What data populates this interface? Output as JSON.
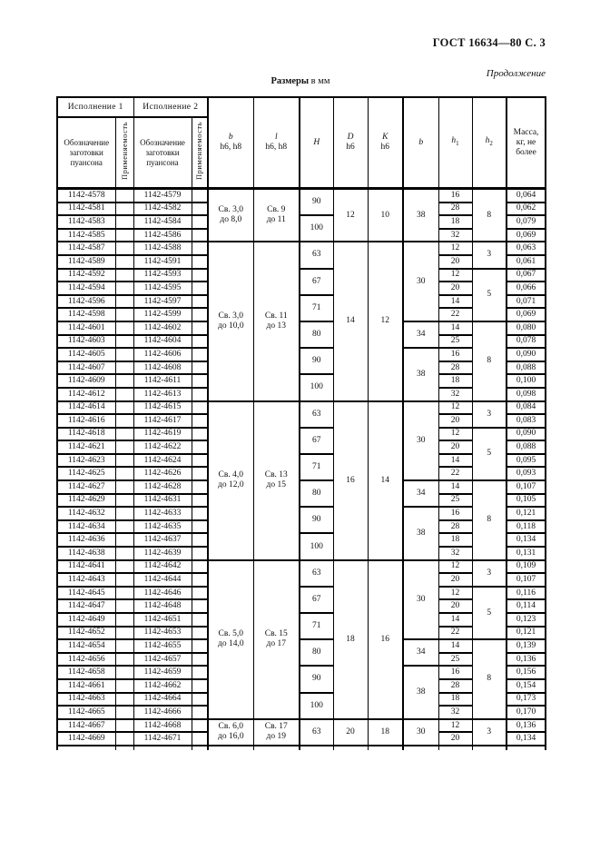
{
  "page": {
    "header_right": "ГОСТ 16634—80 С. 3",
    "continuation": "Продолжение",
    "size_label_bold": "Размеры",
    "size_label_rest": " в мм"
  },
  "table": {
    "group_headers": {
      "variant1": "Исполнение 1",
      "variant2": "Исполнение 2"
    },
    "col_headers": {
      "designation": "Обозначение\nзаготовки\nпуансона",
      "applicability": "Применяемость",
      "b": {
        "sym": "b",
        "tol": "h6, h8"
      },
      "l": {
        "sym": "l",
        "tol": "h6, h8"
      },
      "H": {
        "sym": "H",
        "tol": ""
      },
      "D": {
        "sym": "D",
        "tol": "h6"
      },
      "K": {
        "sym": "K",
        "tol": "h6"
      },
      "b2": {
        "sym": "b",
        "tol": ""
      },
      "h1": {
        "sym": "h",
        "sub": "1"
      },
      "h2": {
        "sym": "h",
        "sub": "2"
      },
      "mass": "Масса,\nкг, не\nболее"
    },
    "blocks": [
      {
        "b": "Св. 3,0\nдо 8,0",
        "l": "Св. 9\nдо 11",
        "D": "12",
        "K": "10",
        "H": [
          [
            "90",
            2
          ],
          [
            "100",
            2
          ]
        ],
        "b2": [
          [
            "38",
            4
          ]
        ],
        "h2": [
          [
            "8",
            4
          ]
        ],
        "rows": [
          [
            "1142-4578",
            "1142-4579",
            "16",
            "0,064"
          ],
          [
            "1142-4581",
            "1142-4582",
            "28",
            "0,062"
          ],
          [
            "1142-4583",
            "1142-4584",
            "18",
            "0,079"
          ],
          [
            "1142-4585",
            "1142-4586",
            "32",
            "0,069"
          ]
        ]
      },
      {
        "b": "Св. 3,0\nдо 10,0",
        "l": "Св. 11\nдо 13",
        "D": "14",
        "K": "12",
        "H": [
          [
            "63",
            2
          ],
          [
            "67",
            2
          ],
          [
            "71",
            2
          ],
          [
            "80",
            2
          ],
          [
            "90",
            2
          ],
          [
            "100",
            2
          ]
        ],
        "b2": [
          [
            "30",
            6
          ],
          [
            "34",
            2
          ],
          [
            "38",
            4
          ]
        ],
        "h2": [
          [
            "3",
            2
          ],
          [
            "5",
            4
          ],
          [
            "8",
            6
          ]
        ],
        "rows": [
          [
            "1142-4587",
            "1142-4588",
            "12",
            "0,063"
          ],
          [
            "1142-4589",
            "1142-4591",
            "20",
            "0,061"
          ],
          [
            "1142-4592",
            "1142-4593",
            "12",
            "0,067"
          ],
          [
            "1142-4594",
            "1142-4595",
            "20",
            "0,066"
          ],
          [
            "1142-4596",
            "1142-4597",
            "14",
            "0,071"
          ],
          [
            "1142-4598",
            "1142-4599",
            "22",
            "0,069"
          ],
          [
            "1142-4601",
            "1142-4602",
            "14",
            "0,080"
          ],
          [
            "1142-4603",
            "1142-4604",
            "25",
            "0,078"
          ],
          [
            "1142-4605",
            "1142-4606",
            "16",
            "0,090"
          ],
          [
            "1142-4607",
            "1142-4608",
            "28",
            "0,088"
          ],
          [
            "1142-4609",
            "1142-4611",
            "18",
            "0,100"
          ],
          [
            "1142-4612",
            "1142-4613",
            "32",
            "0,098"
          ]
        ]
      },
      {
        "b": "Св. 4,0\nдо 12,0",
        "l": "Св. 13\nдо 15",
        "D": "16",
        "K": "14",
        "H": [
          [
            "63",
            2
          ],
          [
            "67",
            2
          ],
          [
            "71",
            2
          ],
          [
            "80",
            2
          ],
          [
            "90",
            2
          ],
          [
            "100",
            2
          ]
        ],
        "b2": [
          [
            "30",
            6
          ],
          [
            "34",
            2
          ],
          [
            "38",
            4
          ]
        ],
        "h2": [
          [
            "3",
            2
          ],
          [
            "5",
            4
          ],
          [
            "8",
            6
          ]
        ],
        "rows": [
          [
            "1142-4614",
            "1142-4615",
            "12",
            "0,084"
          ],
          [
            "1142-4616",
            "1142-4617",
            "20",
            "0,083"
          ],
          [
            "1142-4618",
            "1142-4619",
            "12",
            "0,090"
          ],
          [
            "1142-4621",
            "1142-4622",
            "20",
            "0,088"
          ],
          [
            "1142-4623",
            "1142-4624",
            "14",
            "0,095"
          ],
          [
            "1142-4625",
            "1142-4626",
            "22",
            "0,093"
          ],
          [
            "1142-4627",
            "1142-4628",
            "14",
            "0,107"
          ],
          [
            "1142-4629",
            "1142-4631",
            "25",
            "0,105"
          ],
          [
            "1142-4632",
            "1142-4633",
            "16",
            "0,121"
          ],
          [
            "1142-4634",
            "1142-4635",
            "28",
            "0,118"
          ],
          [
            "1142-4636",
            "1142-4637",
            "18",
            "0,134"
          ],
          [
            "1142-4638",
            "1142-4639",
            "32",
            "0,131"
          ]
        ]
      },
      {
        "b": "Св. 5,0\nдо 14,0",
        "l": "Св. 15\nдо 17",
        "D": "18",
        "K": "16",
        "H": [
          [
            "63",
            2
          ],
          [
            "67",
            2
          ],
          [
            "71",
            2
          ],
          [
            "80",
            2
          ],
          [
            "90",
            2
          ],
          [
            "100",
            2
          ]
        ],
        "b2": [
          [
            "30",
            6
          ],
          [
            "34",
            2
          ],
          [
            "38",
            4
          ]
        ],
        "h2": [
          [
            "3",
            2
          ],
          [
            "5",
            4
          ],
          [
            "8",
            6
          ]
        ],
        "rows": [
          [
            "1142-4641",
            "1142-4642",
            "12",
            "0,109"
          ],
          [
            "1142-4643",
            "1142-4644",
            "20",
            "0,107"
          ],
          [
            "1142-4645",
            "1142-4646",
            "12",
            "0,116"
          ],
          [
            "1142-4647",
            "1142-4648",
            "20",
            "0,114"
          ],
          [
            "1142-4649",
            "1142-4651",
            "14",
            "0,123"
          ],
          [
            "1142-4652",
            "1142-4653",
            "22",
            "0,121"
          ],
          [
            "1142-4654",
            "1142-4655",
            "14",
            "0,139"
          ],
          [
            "1142-4656",
            "1142-4657",
            "25",
            "0,136"
          ],
          [
            "1142-4658",
            "1142-4659",
            "16",
            "0,156"
          ],
          [
            "1142-4661",
            "1142-4662",
            "28",
            "0,154"
          ],
          [
            "1142-4663",
            "1142-4664",
            "18",
            "0,173"
          ],
          [
            "1142-4665",
            "1142-4666",
            "32",
            "0,170"
          ]
        ]
      },
      {
        "b": "Св. 6,0\nдо 16,0",
        "l": "Св. 17\nдо 19",
        "D": "20",
        "K": "18",
        "H": [
          [
            "63",
            2
          ]
        ],
        "b2": [
          [
            "30",
            2
          ]
        ],
        "h2": [
          [
            "3",
            2
          ]
        ],
        "rows": [
          [
            "1142-4667",
            "1142-4668",
            "12",
            "0,136"
          ],
          [
            "1142-4669",
            "1142-4671",
            "20",
            "0,134"
          ]
        ]
      }
    ]
  }
}
